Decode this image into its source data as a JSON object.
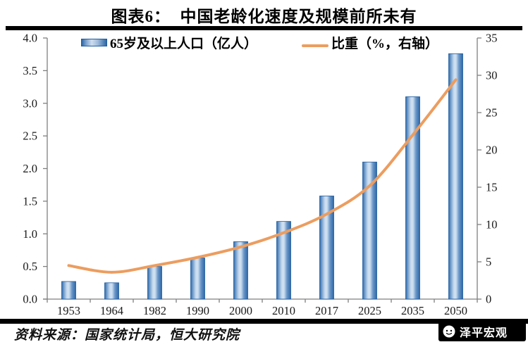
{
  "page": {
    "title": "图表6：  中国老龄化速度及规模前所未有",
    "source": "资料来源：国家统计局，恒大研究院",
    "logo_text": "泽平宏观"
  },
  "chart_data": {
    "type": "bar",
    "subtype": "bar+line dual-axis combo",
    "title": "图表6：  中国老龄化速度及规模前所未有",
    "categories": [
      "1953",
      "1964",
      "1982",
      "1990",
      "2000",
      "2010",
      "2017",
      "2025",
      "2035",
      "2050"
    ],
    "series": [
      {
        "name": "65岁及以上人口（亿人）",
        "type": "bar",
        "axis": "left",
        "values": [
          0.27,
          0.25,
          0.5,
          0.63,
          0.88,
          1.19,
          1.58,
          2.1,
          3.1,
          3.76
        ]
      },
      {
        "name": "比重（%，右轴）",
        "type": "line",
        "axis": "right",
        "values": [
          4.5,
          3.6,
          4.5,
          5.6,
          7.0,
          8.9,
          11.4,
          15.2,
          22.0,
          29.4
        ]
      }
    ],
    "left_axis": {
      "min": 0,
      "max": 4,
      "ticks": [
        "0.0",
        "0.5",
        "1.0",
        "1.5",
        "2.0",
        "2.5",
        "3.0",
        "3.5",
        "4.0"
      ]
    },
    "right_axis": {
      "min": 0,
      "max": 35,
      "ticks": [
        "0",
        "5",
        "10",
        "15",
        "20",
        "25",
        "30",
        "35"
      ]
    },
    "legend_position": "top",
    "grid": false,
    "colors": {
      "bar_dark": "#2c66a5",
      "bar_mid": "#6c98c9",
      "bar_light": "#cddef0",
      "bar_border": "#1f5c9e",
      "line": "#ec9d5f",
      "axis": "#7f7f7f",
      "text": "#1a1a1a"
    }
  }
}
